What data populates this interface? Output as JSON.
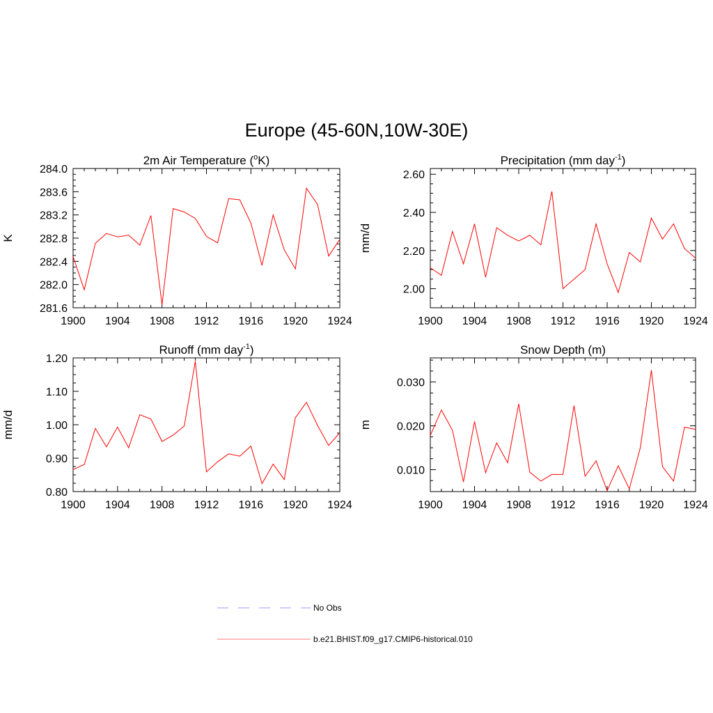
{
  "figure": {
    "title": "Europe (45-60N,10W-30E)",
    "line_color": "#ff0000",
    "obs_color": "#9999ff"
  },
  "legend": {
    "items": [
      {
        "label": "No Obs",
        "style": "dashed",
        "color": "#9999ff"
      },
      {
        "label": "b.e21.BHIST.f09_g17.CMIP6-historical.010",
        "style": "solid",
        "color": "#ff7777"
      }
    ]
  },
  "chart_data": [
    {
      "type": "line",
      "title": "2m Air Temperature",
      "title_unit_prefix": "(",
      "title_unit_sup": "o",
      "title_unit_suffix": "K)",
      "ylabel": "K",
      "xlim": [
        1900,
        1924
      ],
      "ylim": [
        281.6,
        284.0
      ],
      "yticks": [
        281.6,
        282.0,
        282.4,
        282.8,
        283.2,
        283.6,
        284.0
      ],
      "ytick_labels": [
        "281.6",
        "282.0",
        "282.4",
        "282.8",
        "283.2",
        "283.6",
        "284.0"
      ],
      "xticks": [
        1900,
        1904,
        1908,
        1912,
        1916,
        1920,
        1924
      ],
      "xtick_labels": [
        "1900",
        "1904",
        "1908",
        "1912",
        "1916",
        "1920",
        "1924"
      ],
      "x": [
        1900,
        1901,
        1902,
        1903,
        1904,
        1905,
        1906,
        1907,
        1908,
        1909,
        1910,
        1911,
        1912,
        1913,
        1914,
        1915,
        1916,
        1917,
        1918,
        1919,
        1920,
        1921,
        1922,
        1923,
        1924
      ],
      "series": [
        {
          "values": [
            282.48,
            281.91,
            282.71,
            282.88,
            282.82,
            282.85,
            282.68,
            283.19,
            281.65,
            283.31,
            283.25,
            283.14,
            282.83,
            282.72,
            283.48,
            283.46,
            283.06,
            282.33,
            283.2,
            282.6,
            282.27,
            283.66,
            283.38,
            282.49,
            282.78
          ]
        }
      ]
    },
    {
      "type": "line",
      "title": "Precipitation",
      "title_unit_prefix": "(mm day",
      "title_unit_sup": "-1",
      "title_unit_suffix": ")",
      "ylabel": "mm/d",
      "xlim": [
        1900,
        1924
      ],
      "ylim": [
        1.9,
        2.63
      ],
      "yticks": [
        2.0,
        2.2,
        2.4,
        2.6
      ],
      "ytick_labels": [
        "2.00",
        "2.20",
        "2.40",
        "2.60"
      ],
      "xticks": [
        1900,
        1904,
        1908,
        1912,
        1916,
        1920,
        1924
      ],
      "xtick_labels": [
        "1900",
        "1904",
        "1908",
        "1912",
        "1916",
        "1920",
        "1924"
      ],
      "x": [
        1900,
        1901,
        1902,
        1903,
        1904,
        1905,
        1906,
        1907,
        1908,
        1909,
        1910,
        1911,
        1912,
        1913,
        1914,
        1915,
        1916,
        1917,
        1918,
        1919,
        1920,
        1921,
        1922,
        1923,
        1924
      ],
      "series": [
        {
          "values": [
            2.11,
            2.07,
            2.3,
            2.13,
            2.34,
            2.06,
            2.32,
            2.28,
            2.25,
            2.28,
            2.23,
            2.51,
            2.0,
            2.05,
            2.1,
            2.34,
            2.13,
            1.98,
            2.19,
            2.14,
            2.37,
            2.26,
            2.34,
            2.21,
            2.16
          ]
        }
      ]
    },
    {
      "type": "line",
      "title": "Runoff",
      "title_unit_prefix": "(mm day",
      "title_unit_sup": "-1",
      "title_unit_suffix": ")",
      "ylabel": "mm/d",
      "xlim": [
        1900,
        1924
      ],
      "ylim": [
        0.8,
        1.2
      ],
      "yticks": [
        0.8,
        0.9,
        1.0,
        1.1,
        1.2
      ],
      "ytick_labels": [
        "0.80",
        "0.90",
        "1.00",
        "1.10",
        "1.20"
      ],
      "xticks": [
        1900,
        1904,
        1908,
        1912,
        1916,
        1920,
        1924
      ],
      "xtick_labels": [
        "1900",
        "1904",
        "1908",
        "1912",
        "1916",
        "1920",
        "1924"
      ],
      "x": [
        1900,
        1901,
        1902,
        1903,
        1904,
        1905,
        1906,
        1907,
        1908,
        1909,
        1910,
        1911,
        1912,
        1913,
        1914,
        1915,
        1916,
        1917,
        1918,
        1919,
        1920,
        1921,
        1922,
        1923,
        1924
      ],
      "series": [
        {
          "values": [
            0.866,
            0.881,
            0.989,
            0.934,
            0.993,
            0.931,
            1.03,
            1.017,
            0.95,
            0.969,
            0.996,
            1.19,
            0.859,
            0.889,
            0.913,
            0.906,
            0.936,
            0.824,
            0.882,
            0.836,
            1.021,
            1.067,
            0.998,
            0.938,
            0.976
          ]
        }
      ]
    },
    {
      "type": "line",
      "title": "Snow Depth (m)",
      "title_unit_prefix": "",
      "title_unit_sup": "",
      "title_unit_suffix": "",
      "ylabel": "m",
      "xlim": [
        1900,
        1924
      ],
      "ylim": [
        0.005,
        0.0355
      ],
      "yticks": [
        0.01,
        0.02,
        0.03
      ],
      "ytick_labels": [
        "0.010",
        "0.020",
        "0.030"
      ],
      "xticks": [
        1900,
        1904,
        1908,
        1912,
        1916,
        1920,
        1924
      ],
      "xtick_labels": [
        "1900",
        "1904",
        "1908",
        "1912",
        "1916",
        "1920",
        "1924"
      ],
      "x": [
        1900,
        1901,
        1902,
        1903,
        1904,
        1905,
        1906,
        1907,
        1908,
        1909,
        1910,
        1911,
        1912,
        1913,
        1914,
        1915,
        1916,
        1917,
        1918,
        1919,
        1920,
        1921,
        1922,
        1923,
        1924
      ],
      "series": [
        {
          "values": [
            0.0178,
            0.0236,
            0.019,
            0.0072,
            0.021,
            0.0093,
            0.0161,
            0.0116,
            0.025,
            0.0094,
            0.0074,
            0.0089,
            0.0089,
            0.0246,
            0.0085,
            0.012,
            0.0052,
            0.0109,
            0.0056,
            0.015,
            0.0327,
            0.0107,
            0.0074,
            0.0197,
            0.0192
          ]
        }
      ]
    }
  ]
}
